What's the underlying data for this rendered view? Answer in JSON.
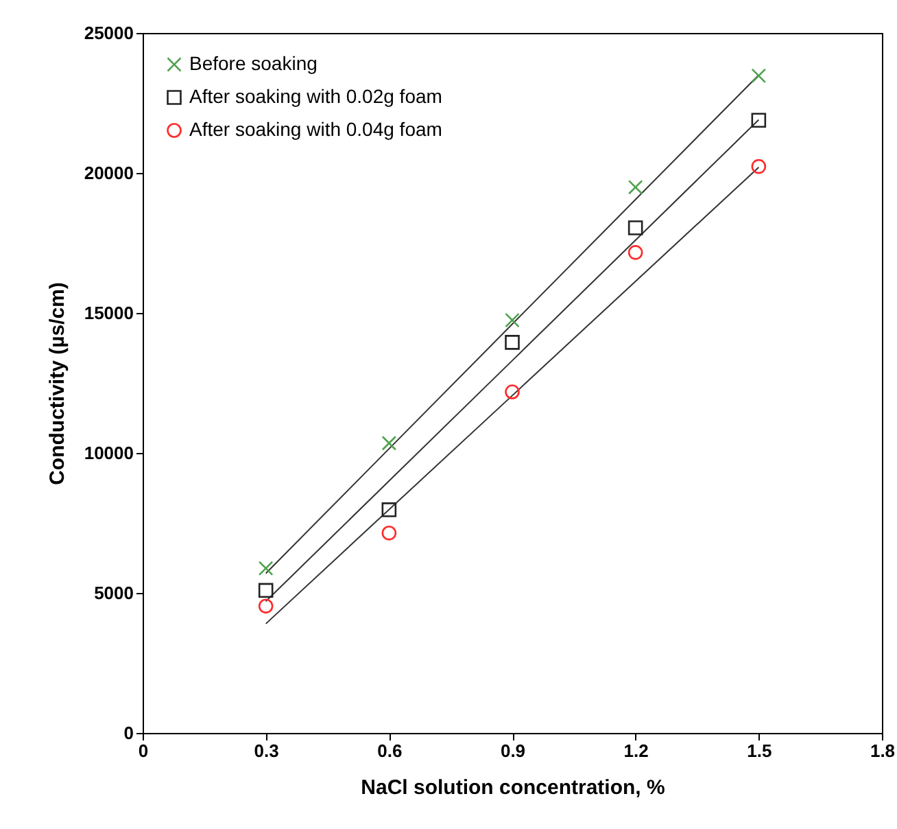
{
  "chart_data": {
    "type": "scatter",
    "xlabel": "NaCl  solution concentration, %",
    "ylabel": "Conductivity (µs/cm)",
    "x": [
      0.3,
      0.6,
      0.9,
      1.2,
      1.5
    ],
    "xlim": [
      0,
      1.8
    ],
    "xticks": [
      0,
      0.3,
      0.6,
      0.9,
      1.2,
      1.5,
      1.8
    ],
    "ylim": [
      0,
      25000
    ],
    "yticks": [
      0,
      5000,
      10000,
      15000,
      20000,
      25000
    ],
    "grid": false,
    "legend": "top left",
    "series": [
      {
        "name": "Before soaking",
        "color": "#4ea24e",
        "marker": "cross",
        "values": [
          5880,
          10350,
          14740,
          19490,
          23470
        ]
      },
      {
        "name": "After soaking with 0.02g foam",
        "color": "#222222",
        "marker": "square",
        "values": [
          5090,
          7970,
          13950,
          18040,
          21880
        ]
      },
      {
        "name": "After soaking with 0.04g foam",
        "color": "#ff2a2a",
        "marker": "circle",
        "values": [
          4530,
          7140,
          12180,
          17160,
          20230
        ]
      },
      {
        "type": "line",
        "color": "#333333",
        "values": [
          5700,
          10150,
          14600,
          19050,
          23500
        ]
      },
      {
        "type": "line",
        "color": "#333333",
        "values": [
          4700,
          9000,
          13300,
          17600,
          21900
        ]
      },
      {
        "type": "line",
        "color": "#333333",
        "values": [
          3900,
          7980,
          12050,
          16130,
          20200
        ]
      }
    ]
  }
}
